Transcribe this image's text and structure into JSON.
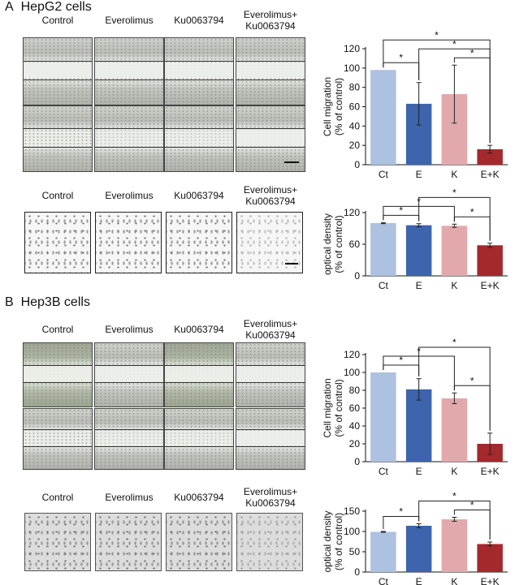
{
  "figure": {
    "panels": [
      {
        "id": "A",
        "letter": "A",
        "title": "HepG2 cells",
        "wound_labels": [
          "Control",
          "Everolimus",
          "Ku0063794",
          "Everolimus+",
          "Ku0063794"
        ],
        "transwell_labels": [
          "Control",
          "Everolimus",
          "Ku0063794",
          "Everolimus+",
          "Ku0063794"
        ]
      },
      {
        "id": "B",
        "letter": "B",
        "title": "Hep3B cells",
        "wound_labels": [
          "Control",
          "Everolimus",
          "Ku0063794",
          "Everolimus+",
          "Ku0063794"
        ],
        "transwell_labels": [
          "Control",
          "Everolimus",
          "Ku0063794",
          "Everolimus+",
          "Ku0063794"
        ]
      }
    ],
    "colors": {
      "Ct": "#adc1e0",
      "E": "#3d64ac",
      "K": "#e2a9ac",
      "EK": "#a3292d"
    }
  },
  "chart_data": [
    {
      "id": "hepg2-migration",
      "type": "bar",
      "ylabel_lines": [
        "Cell migration",
        "(% of control)"
      ],
      "categories": [
        "Ct",
        "E",
        "K",
        "E+K"
      ],
      "values": [
        98,
        63,
        73,
        16
      ],
      "errors": [
        0,
        22,
        30,
        4
      ],
      "ylim": [
        0,
        120
      ],
      "ticks": [
        0,
        20,
        40,
        60,
        80,
        100,
        120
      ],
      "significance": [
        {
          "from": "Ct",
          "to": "E",
          "label": "*"
        },
        {
          "from": "E",
          "to": "E+K",
          "label": "*"
        },
        {
          "from": "K",
          "to": "E+K",
          "label": "*"
        },
        {
          "from": "Ct",
          "to": "E+K",
          "label": "*"
        }
      ]
    },
    {
      "id": "hepg2-transwell",
      "type": "bar",
      "ylabel_lines": [
        "optical density",
        "(% of control)"
      ],
      "categories": [
        "Ct",
        "E",
        "K",
        "E+K"
      ],
      "values": [
        100,
        96,
        95,
        58
      ],
      "errors": [
        1,
        3,
        3,
        4
      ],
      "ylim": [
        0,
        120
      ],
      "ticks": [
        0,
        60,
        120
      ],
      "significance": [
        {
          "from": "Ct",
          "to": "E",
          "label": "*"
        },
        {
          "from": "Ct",
          "to": "K",
          "label": "*"
        },
        {
          "from": "K",
          "to": "E+K",
          "label": "*"
        },
        {
          "from": "E",
          "to": "E+K",
          "label": "*"
        }
      ]
    },
    {
      "id": "hep3b-migration",
      "type": "bar",
      "ylabel_lines": [
        "Cell migration",
        "(% of control)"
      ],
      "categories": [
        "Ct",
        "E",
        "K",
        "E+K"
      ],
      "values": [
        100,
        81,
        71,
        20
      ],
      "errors": [
        0,
        12,
        6,
        12
      ],
      "ylim": [
        0,
        120
      ],
      "ticks": [
        0,
        20,
        40,
        60,
        80,
        100,
        120
      ],
      "significance": [
        {
          "from": "Ct",
          "to": "E",
          "label": "*"
        },
        {
          "from": "Ct",
          "to": "K",
          "label": "*"
        },
        {
          "from": "K",
          "to": "E+K",
          "label": "*"
        },
        {
          "from": "E",
          "to": "E+K",
          "label": "*"
        }
      ]
    },
    {
      "id": "hep3b-transwell",
      "type": "bar",
      "ylabel_lines": [
        "optical density",
        "(% of control)"
      ],
      "categories": [
        "Ct",
        "E",
        "K",
        "E+K"
      ],
      "values": [
        99,
        114,
        130,
        69
      ],
      "errors": [
        1,
        5,
        5,
        5
      ],
      "ylim": [
        0,
        150
      ],
      "ticks": [
        0,
        50,
        100,
        150
      ],
      "significance": [
        {
          "from": "Ct",
          "to": "E",
          "label": "*"
        },
        {
          "from": "K",
          "to": "E+K",
          "label": "*"
        },
        {
          "from": "E",
          "to": "E+K",
          "label": "*"
        }
      ]
    }
  ]
}
